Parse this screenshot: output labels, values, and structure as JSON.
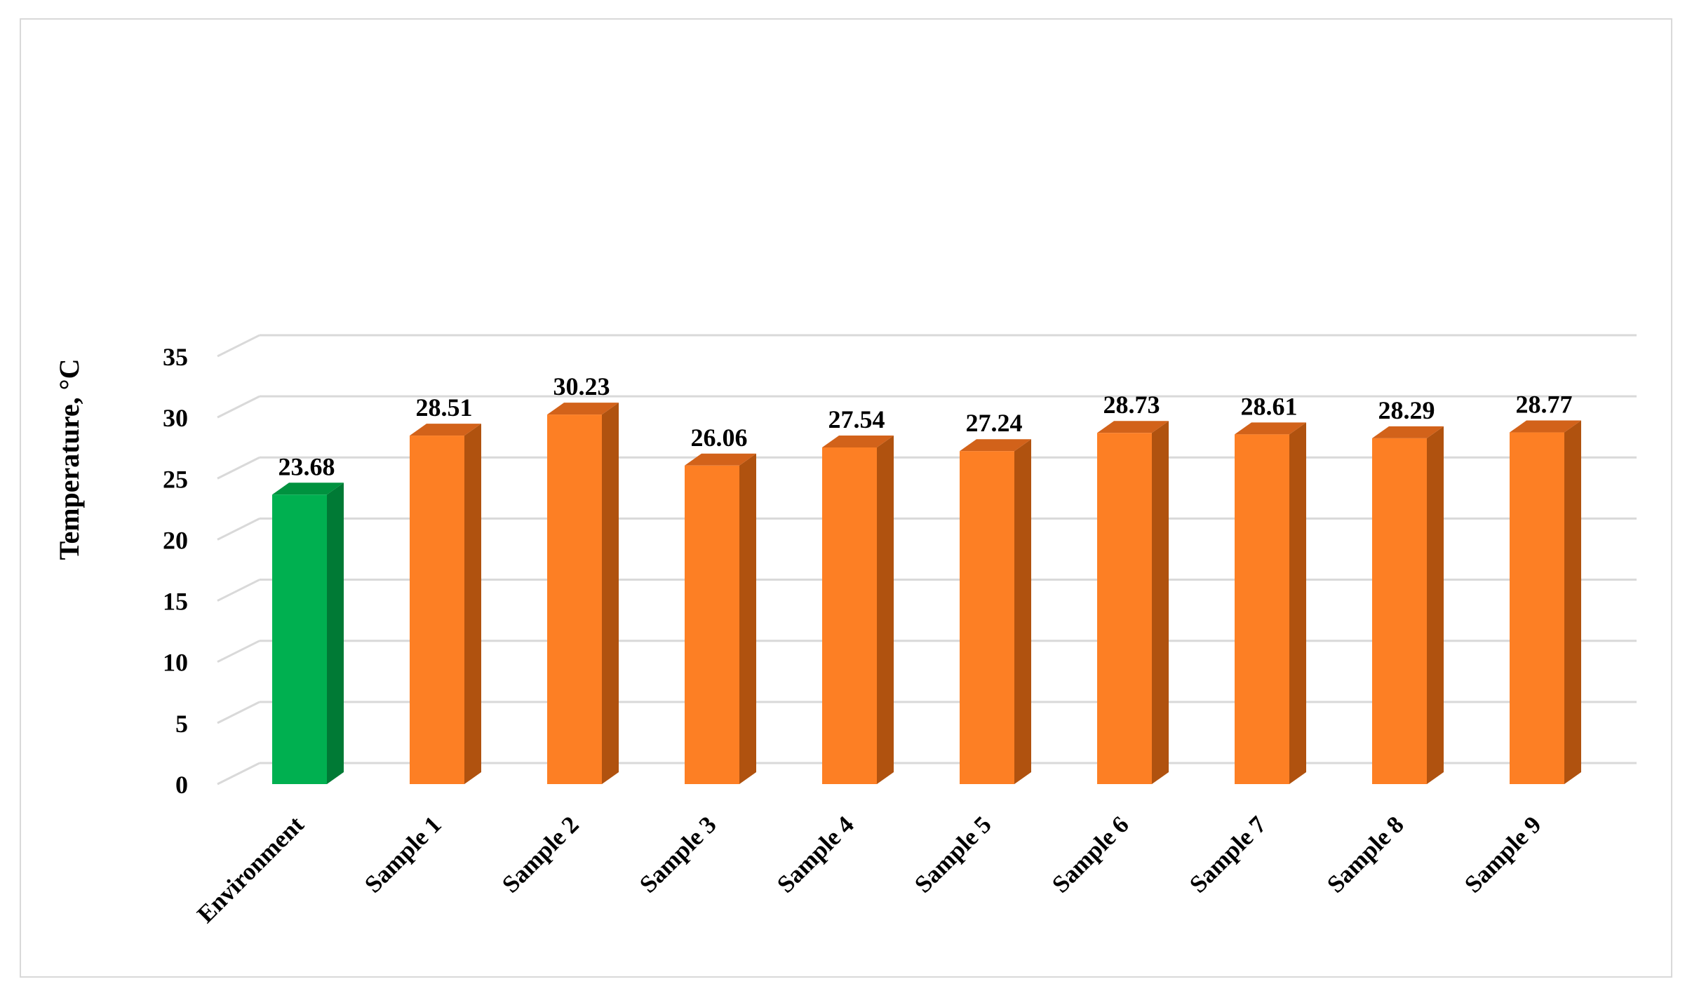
{
  "chart_data": {
    "type": "bar",
    "title": "",
    "xlabel": "",
    "ylabel": "Temperature, °C",
    "ylim": [
      0,
      35
    ],
    "yticks": [
      0,
      5,
      10,
      15,
      20,
      25,
      30,
      35
    ],
    "grid": true,
    "legend": "none",
    "style": "3d-column",
    "categories": [
      "Environment",
      "Sample 1",
      "Sample 2",
      "Sample 3",
      "Sample 4",
      "Sample 5",
      "Sample 6",
      "Sample 7",
      "Sample 8",
      "Sample 9"
    ],
    "values": [
      23.68,
      28.51,
      30.23,
      26.06,
      27.54,
      27.24,
      28.73,
      28.61,
      28.29,
      28.77
    ],
    "data_labels": [
      "23.68",
      "28.51",
      "30.23",
      "26.06",
      "27.54",
      "27.24",
      "28.73",
      "28.61",
      "28.29",
      "28.77"
    ],
    "colors": {
      "environment_front": "#00b050",
      "environment_side": "#007a35",
      "environment_top": "#00923f",
      "sample_front": "#fd7f24",
      "sample_side": "#b0520f",
      "sample_top": "#d2621a",
      "grid": "#d9d9d9"
    }
  }
}
